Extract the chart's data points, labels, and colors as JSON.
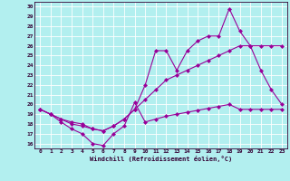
{
  "xlabel": "Windchill (Refroidissement éolien,°C)",
  "background_color": "#b2efef",
  "grid_color": "#ffffff",
  "line_color": "#990099",
  "xlim": [
    -0.5,
    23.5
  ],
  "ylim": [
    15.5,
    30.5
  ],
  "yticks": [
    16,
    17,
    18,
    19,
    20,
    21,
    22,
    23,
    24,
    25,
    26,
    27,
    28,
    29,
    30
  ],
  "xticks": [
    0,
    1,
    2,
    3,
    4,
    5,
    6,
    7,
    8,
    9,
    10,
    11,
    12,
    13,
    14,
    15,
    16,
    17,
    18,
    19,
    20,
    21,
    22,
    23
  ],
  "line1_x": [
    0,
    1,
    2,
    3,
    4,
    5,
    6,
    7,
    8,
    9,
    10,
    11,
    12,
    13,
    14,
    15,
    16,
    17,
    18,
    19,
    20,
    21,
    22,
    23
  ],
  "line1_y": [
    19.5,
    19.0,
    18.2,
    17.5,
    17.0,
    16.0,
    15.8,
    17.0,
    17.8,
    20.2,
    18.2,
    18.5,
    18.8,
    19.0,
    19.2,
    19.4,
    19.6,
    19.8,
    20.0,
    19.5,
    19.5,
    19.5,
    19.5,
    19.5
  ],
  "line2_x": [
    0,
    1,
    2,
    3,
    4,
    5,
    6,
    7,
    8,
    9,
    10,
    11,
    12,
    13,
    14,
    15,
    16,
    17,
    18,
    19,
    20,
    21,
    22,
    23
  ],
  "line2_y": [
    19.5,
    19.0,
    18.5,
    18.0,
    17.8,
    17.5,
    17.3,
    17.8,
    18.5,
    19.5,
    20.5,
    21.5,
    22.5,
    23.0,
    23.5,
    24.0,
    24.5,
    25.0,
    25.5,
    26.0,
    26.0,
    26.0,
    26.0,
    26.0
  ],
  "line3_x": [
    0,
    1,
    2,
    3,
    4,
    5,
    6,
    7,
    8,
    9,
    10,
    11,
    12,
    13,
    14,
    15,
    16,
    17,
    18,
    19,
    20,
    21,
    22,
    23
  ],
  "line3_y": [
    19.5,
    19.0,
    18.5,
    18.2,
    18.0,
    17.5,
    17.3,
    17.8,
    18.5,
    19.5,
    22.0,
    25.5,
    25.5,
    23.5,
    25.5,
    26.5,
    27.0,
    27.0,
    29.8,
    27.5,
    26.0,
    23.5,
    21.5,
    20.0
  ]
}
